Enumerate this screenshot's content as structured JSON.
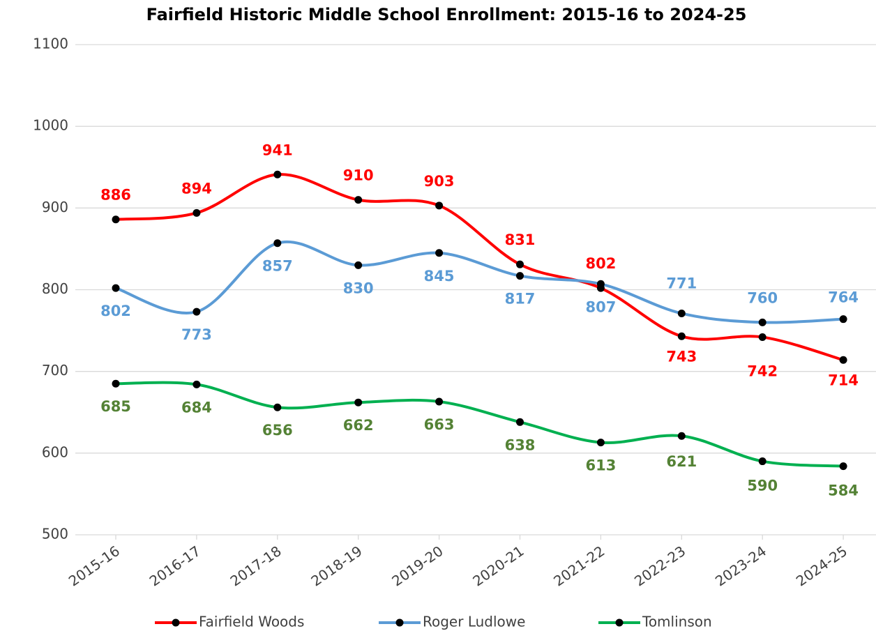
{
  "chart_data": {
    "type": "line",
    "title": "Fairfield Historic Middle School Enrollment: 2015-16 to 2024-25",
    "categories": [
      "2015-16",
      "2016-17",
      "2017-18",
      "2018-19",
      "2019-20",
      "2020-21",
      "2021-22",
      "2022-23",
      "2023-24",
      "2024-25"
    ],
    "series": [
      {
        "name": "Fairfield Woods",
        "color": "#ff0000",
        "label_color": "#ff0000",
        "values": [
          886,
          894,
          941,
          910,
          903,
          831,
          802,
          743,
          742,
          714
        ]
      },
      {
        "name": "Roger Ludlowe",
        "color": "#5b9bd5",
        "label_color": "#5b9bd5",
        "values": [
          802,
          773,
          857,
          830,
          845,
          817,
          807,
          771,
          760,
          764
        ]
      },
      {
        "name": "Tomlinson",
        "color": "#00b050",
        "label_color": "#548235",
        "values": [
          685,
          684,
          656,
          662,
          663,
          638,
          613,
          621,
          590,
          584
        ]
      }
    ],
    "ylim": [
      500,
      1100
    ],
    "yticks": [
      500,
      600,
      700,
      800,
      900,
      1000,
      1100
    ],
    "grid": true,
    "smooth": true,
    "legend": "bottom"
  }
}
